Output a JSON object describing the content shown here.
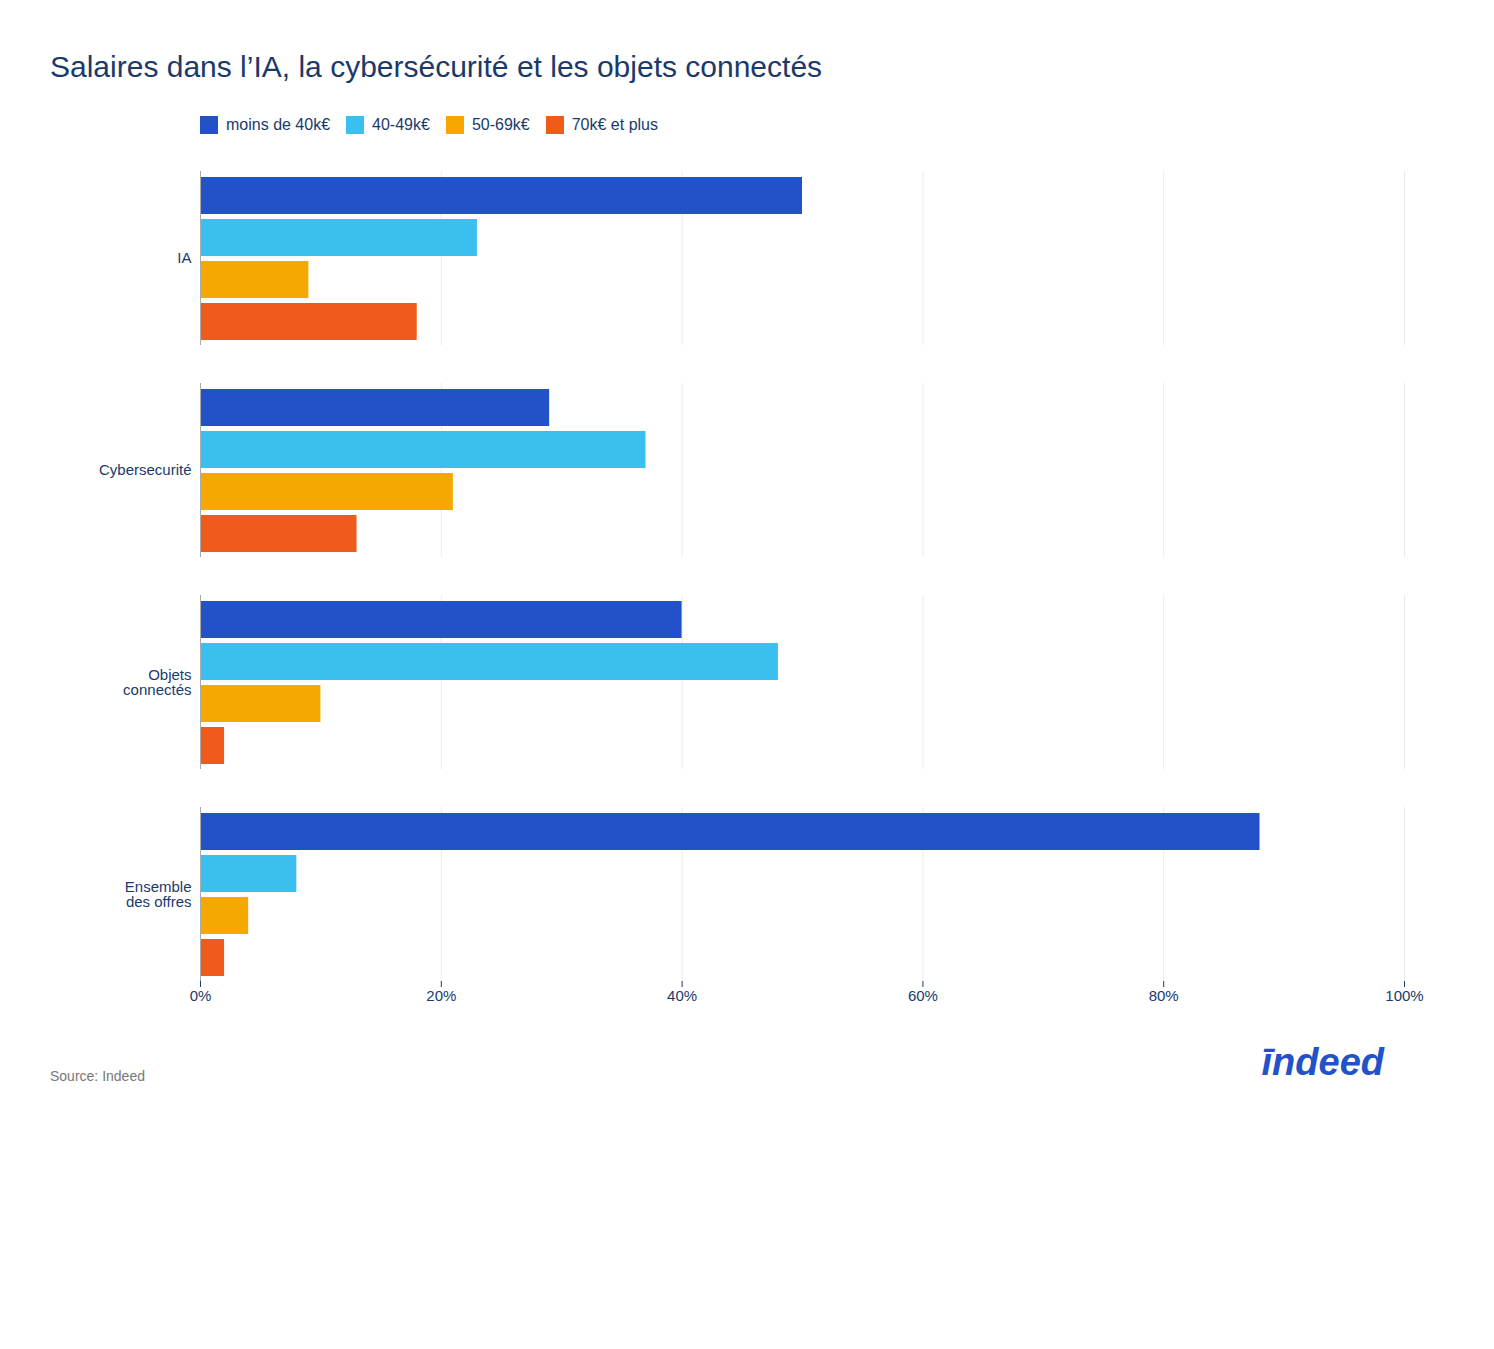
{
  "chart_data": {
    "type": "bar",
    "orientation": "horizontal",
    "title": "Salaires dans l’IA, la cybersécurité et les objets connectés",
    "categories": [
      "IA",
      "Cybersecurité",
      "Objets\nconnectés",
      "Ensemble\ndes offres"
    ],
    "series": [
      {
        "name": "moins de 40k€",
        "color": "#2352c8",
        "values": [
          50,
          29,
          40,
          88
        ]
      },
      {
        "name": "40-49k€",
        "color": "#3bbfef",
        "values": [
          23,
          37,
          48,
          8
        ]
      },
      {
        "name": "50-69k€",
        "color": "#f5a800",
        "values": [
          9,
          21,
          10,
          4
        ]
      },
      {
        "name": "70k€ et plus",
        "color": "#f05a1a",
        "values": [
          18,
          13,
          2,
          2
        ]
      }
    ],
    "xlim": [
      0,
      100
    ],
    "xticks": [
      {
        "value": 0,
        "label": "0%"
      },
      {
        "value": 20,
        "label": "20%"
      },
      {
        "value": 40,
        "label": "40%"
      },
      {
        "value": 60,
        "label": "60%"
      },
      {
        "value": 80,
        "label": "80%"
      },
      {
        "value": 100,
        "label": "100%"
      }
    ],
    "grid": true,
    "legend": "top",
    "annotations": [
      "Source: Indeed",
      "īndeed"
    ]
  }
}
